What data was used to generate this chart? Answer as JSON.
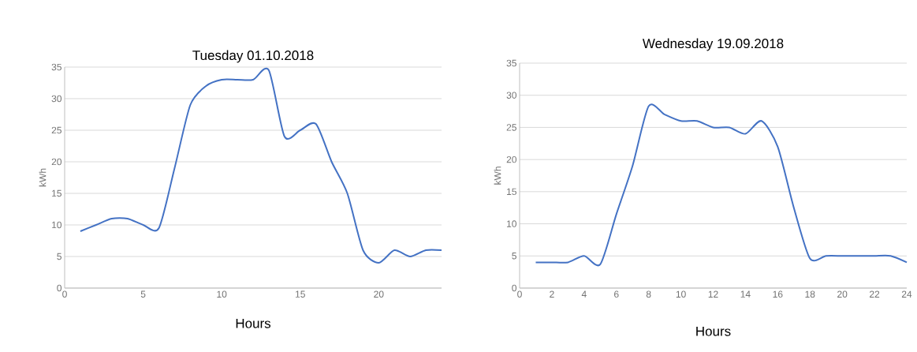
{
  "chart_data": [
    {
      "type": "line",
      "title": "Tuesday 01.10.2018",
      "xlabel": "Hours",
      "ylabel": "kWh",
      "x": [
        1,
        2,
        3,
        4,
        5,
        6,
        7,
        8,
        9,
        10,
        11,
        12,
        13,
        14,
        15,
        16,
        17,
        18,
        19,
        20,
        21,
        22,
        23,
        24
      ],
      "values": [
        9,
        10,
        11,
        11,
        10,
        9.5,
        19,
        29,
        32,
        33,
        33,
        33,
        34.5,
        24,
        25,
        26,
        20,
        15,
        6,
        4,
        6,
        5,
        6,
        6
      ],
      "color": "#4472c4",
      "xlim": [
        0,
        24
      ],
      "ylim": [
        0,
        35
      ],
      "xticks": [
        0,
        5,
        10,
        15,
        20
      ],
      "yticks": [
        0,
        5,
        10,
        15,
        20,
        25,
        30,
        35
      ],
      "grid": "y"
    },
    {
      "type": "line",
      "title": "Wednesday 19.09.2018",
      "xlabel": "Hours",
      "ylabel": "kWh",
      "x": [
        1,
        2,
        3,
        4,
        5,
        6,
        7,
        8,
        9,
        10,
        11,
        12,
        13,
        14,
        15,
        16,
        17,
        18,
        19,
        20,
        21,
        22,
        23,
        24
      ],
      "values": [
        4,
        4,
        4,
        5,
        3.7,
        11.5,
        19,
        28.3,
        27,
        26,
        26,
        25,
        25,
        24,
        26,
        22,
        12.5,
        4.6,
        5,
        5,
        5,
        5,
        5,
        4
      ],
      "color": "#4472c4",
      "xlim": [
        0,
        24
      ],
      "ylim": [
        0,
        35
      ],
      "xticks": [
        0,
        2,
        4,
        6,
        8,
        10,
        12,
        14,
        16,
        18,
        20,
        22,
        24
      ],
      "yticks": [
        0,
        5,
        10,
        15,
        20,
        25,
        30,
        35
      ],
      "grid": "y"
    }
  ]
}
